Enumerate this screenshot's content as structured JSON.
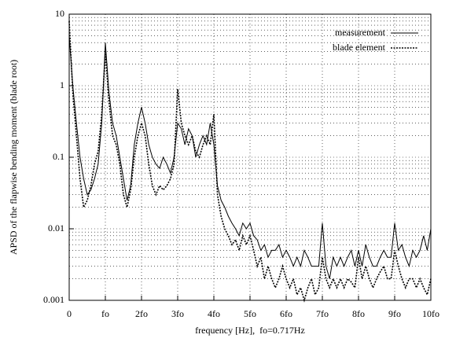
{
  "chart_data": {
    "type": "line",
    "ylabel": "APSD of the flapwise bending moment (blade root)",
    "xlabel": "frequency [Hz],  fo=0.717Hz",
    "ylog": true,
    "grid": true,
    "legend": "upper right",
    "xlim": [
      0,
      10
    ],
    "xticks": [
      0,
      {
        "value": 1,
        "label": "fo"
      },
      {
        "value": 2,
        "label": "2fo"
      },
      {
        "value": 3,
        "label": "3fo"
      },
      {
        "value": 4,
        "label": "4fo"
      },
      {
        "value": 5,
        "label": "5fo"
      },
      {
        "value": 6,
        "label": "6fo"
      },
      {
        "value": 7,
        "label": "7fo"
      },
      {
        "value": 8,
        "label": "8fo"
      },
      {
        "value": 9,
        "label": "9fo"
      },
      {
        "value": 10,
        "label": "10fo"
      }
    ],
    "ylim": [
      0.001,
      10
    ],
    "yticks": [
      0.001,
      0.01,
      0.1,
      1,
      10
    ],
    "yminorticks": [
      0.002,
      0.003,
      0.004,
      0.005,
      0.006,
      0.007,
      0.008,
      0.009,
      0.02,
      0.03,
      0.04,
      0.05,
      0.06,
      0.07,
      0.08,
      0.09,
      0.2,
      0.3,
      0.4,
      0.5,
      0.6,
      0.7,
      0.8,
      0.9,
      2,
      3,
      4,
      5,
      6,
      7,
      8,
      9
    ],
    "x": [
      0,
      0.1,
      0.2,
      0.3,
      0.4,
      0.5,
      0.6,
      0.7,
      0.8,
      0.9,
      1,
      1.1,
      1.2,
      1.3,
      1.4,
      1.5,
      1.6,
      1.7,
      1.8,
      1.9,
      2,
      2.1,
      2.2,
      2.3,
      2.4,
      2.5,
      2.6,
      2.7,
      2.8,
      2.9,
      3,
      3.1,
      3.2,
      3.3,
      3.4,
      3.5,
      3.6,
      3.7,
      3.8,
      3.9,
      4,
      4.1,
      4.2,
      4.3,
      4.4,
      4.5,
      4.6,
      4.7,
      4.8,
      4.9,
      5,
      5.1,
      5.2,
      5.3,
      5.4,
      5.5,
      5.6,
      5.7,
      5.8,
      5.9,
      6,
      6.1,
      6.2,
      6.3,
      6.4,
      6.5,
      6.6,
      6.7,
      6.8,
      6.9,
      7,
      7.1,
      7.2,
      7.3,
      7.4,
      7.5,
      7.6,
      7.7,
      7.8,
      7.9,
      8,
      8.1,
      8.2,
      8.3,
      8.4,
      8.5,
      8.6,
      8.7,
      8.8,
      8.9,
      9,
      9.1,
      9.2,
      9.3,
      9.4,
      9.5,
      9.6,
      9.7,
      9.8,
      9.9,
      10
    ],
    "series": [
      {
        "name": "measurement",
        "color": "#000000",
        "style": "solid",
        "values": [
          5,
          1,
          0.3,
          0.1,
          0.05,
          0.03,
          0.035,
          0.05,
          0.08,
          0.3,
          4,
          0.8,
          0.3,
          0.2,
          0.1,
          0.05,
          0.025,
          0.04,
          0.15,
          0.3,
          0.5,
          0.3,
          0.15,
          0.1,
          0.08,
          0.07,
          0.1,
          0.08,
          0.06,
          0.1,
          0.3,
          0.25,
          0.15,
          0.25,
          0.2,
          0.1,
          0.15,
          0.2,
          0.15,
          0.3,
          0.15,
          0.04,
          0.025,
          0.02,
          0.015,
          0.012,
          0.01,
          0.008,
          0.012,
          0.01,
          0.012,
          0.008,
          0.007,
          0.005,
          0.006,
          0.004,
          0.005,
          0.005,
          0.006,
          0.004,
          0.005,
          0.004,
          0.003,
          0.004,
          0.003,
          0.005,
          0.004,
          0.003,
          0.003,
          0.003,
          0.012,
          0.003,
          0.002,
          0.004,
          0.003,
          0.004,
          0.003,
          0.004,
          0.005,
          0.003,
          0.005,
          0.003,
          0.006,
          0.004,
          0.003,
          0.003,
          0.004,
          0.005,
          0.004,
          0.004,
          0.012,
          0.005,
          0.006,
          0.004,
          0.003,
          0.005,
          0.004,
          0.005,
          0.008,
          0.005,
          0.01
        ]
      },
      {
        "name": "blade element",
        "color": "#000000",
        "style": "dotted",
        "values": [
          8,
          0.8,
          0.2,
          0.05,
          0.02,
          0.025,
          0.04,
          0.08,
          0.12,
          0.4,
          3,
          0.6,
          0.2,
          0.15,
          0.08,
          0.03,
          0.02,
          0.035,
          0.1,
          0.2,
          0.3,
          0.2,
          0.08,
          0.04,
          0.03,
          0.04,
          0.035,
          0.04,
          0.05,
          0.08,
          0.9,
          0.3,
          0.2,
          0.15,
          0.2,
          0.12,
          0.1,
          0.15,
          0.2,
          0.15,
          0.4,
          0.03,
          0.015,
          0.01,
          0.008,
          0.006,
          0.007,
          0.005,
          0.008,
          0.006,
          0.008,
          0.005,
          0.003,
          0.004,
          0.002,
          0.003,
          0.002,
          0.0015,
          0.002,
          0.003,
          0.002,
          0.0015,
          0.002,
          0.0012,
          0.0015,
          0.001,
          0.0015,
          0.002,
          0.0012,
          0.0015,
          0.004,
          0.002,
          0.0015,
          0.002,
          0.0015,
          0.002,
          0.0015,
          0.002,
          0.0018,
          0.0015,
          0.004,
          0.002,
          0.003,
          0.002,
          0.0015,
          0.002,
          0.0025,
          0.003,
          0.002,
          0.002,
          0.005,
          0.003,
          0.002,
          0.0015,
          0.002,
          0.002,
          0.0015,
          0.002,
          0.0015,
          0.0012,
          0.002
        ]
      }
    ]
  }
}
